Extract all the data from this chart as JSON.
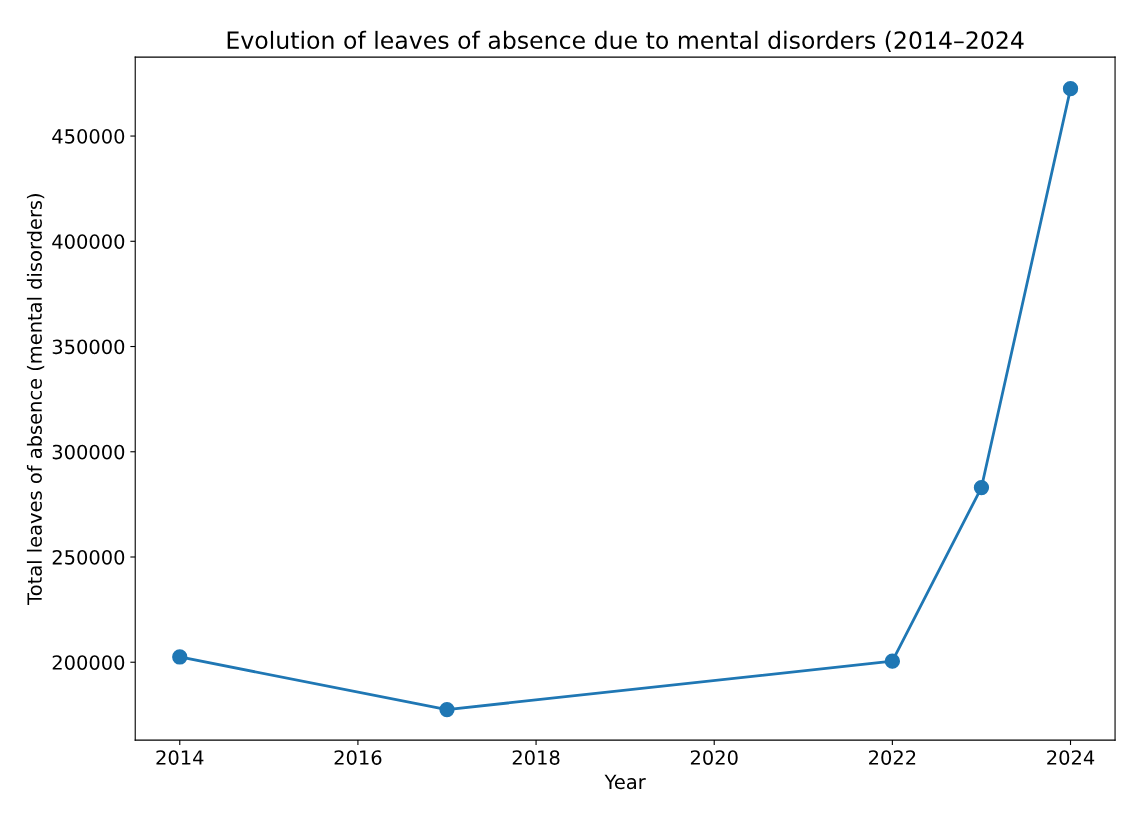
{
  "chart_data": {
    "type": "line",
    "title": "Evolution of leaves of absence due to mental disorders (2014–2024",
    "xlabel": "Year",
    "ylabel": "Total leaves of absence (mental disorders)",
    "x": [
      2014,
      2017,
      2022,
      2023,
      2024
    ],
    "series": [
      {
        "color": "#1f77b4",
        "values": [
          202500,
          177500,
          200500,
          283000,
          472500
        ]
      }
    ],
    "xlim": [
      2013.5,
      2024.5
    ],
    "xticks": [
      2014,
      2016,
      2018,
      2020,
      2022,
      2024
    ],
    "ylim": [
      163000,
      487500
    ],
    "yticks": [
      200000,
      250000,
      300000,
      350000,
      400000,
      450000
    ],
    "marker": "circle",
    "line_style": "solid",
    "grid": false,
    "legend": false
  }
}
